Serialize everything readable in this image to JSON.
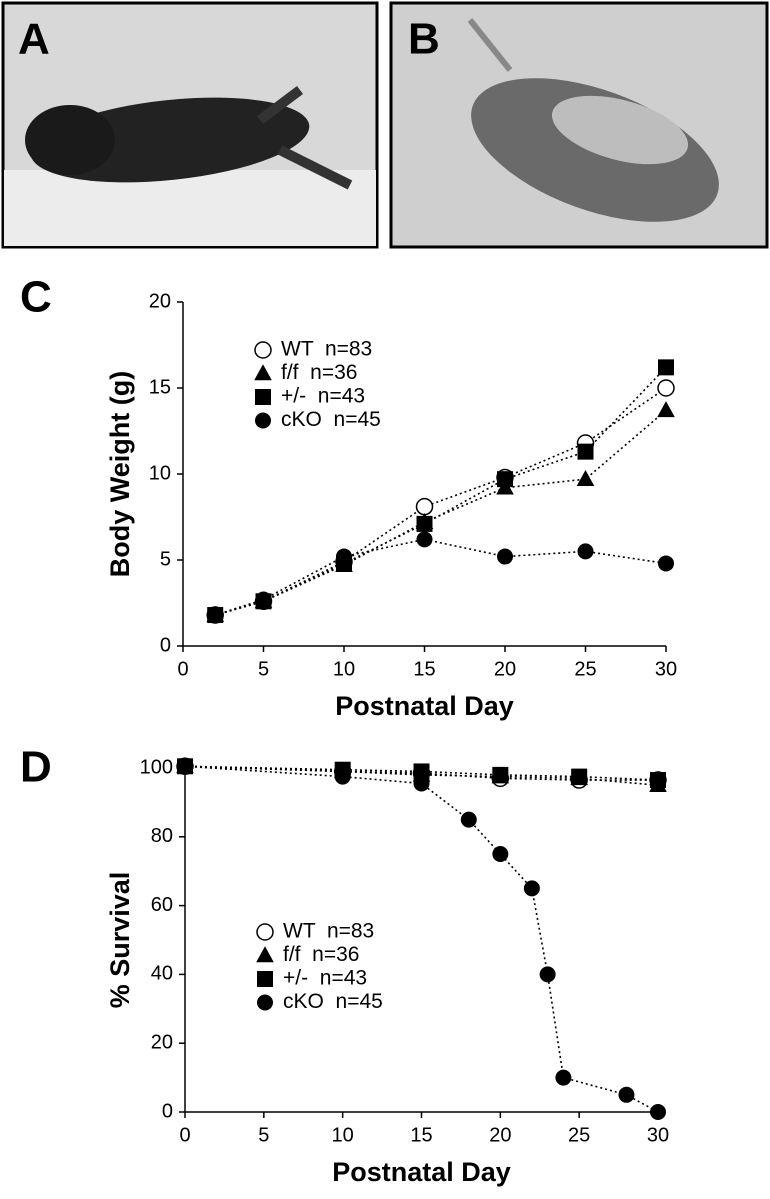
{
  "panel_labels": [
    "A",
    "B",
    "C",
    "D"
  ],
  "chart_data": [
    {
      "type": "line",
      "xlabel": "Postnatal Day",
      "ylabel": "Body Weight (g)",
      "x": [
        2,
        5,
        10,
        15,
        20,
        25,
        30
      ],
      "xlim": [
        0,
        30
      ],
      "xticks": [
        0,
        5,
        10,
        15,
        20,
        25,
        30
      ],
      "ylim": [
        0,
        20
      ],
      "yticks": [
        0,
        5,
        10,
        15,
        20
      ],
      "legend": "upper left",
      "series": [
        {
          "name": "WT  n=83",
          "marker": "open-circle",
          "color": "#000000",
          "values": [
            1.8,
            2.6,
            4.9,
            8.1,
            9.8,
            11.8,
            15.0
          ]
        },
        {
          "name": "f/f  n=36",
          "marker": "triangle",
          "color": "#000000",
          "values": [
            1.8,
            2.6,
            4.7,
            7.2,
            9.2,
            9.7,
            13.7
          ]
        },
        {
          "name": "+/-  n=43",
          "marker": "square",
          "color": "#000000",
          "values": [
            1.8,
            2.6,
            4.8,
            7.1,
            9.7,
            11.3,
            16.2
          ]
        },
        {
          "name": "cKO  n=45",
          "marker": "circle",
          "color": "#000000",
          "values": [
            1.8,
            2.7,
            5.2,
            6.2,
            5.2,
            5.5,
            4.8
          ]
        }
      ]
    },
    {
      "type": "line",
      "xlabel": "Postnatal Day",
      "ylabel": "% Survival",
      "xlim": [
        0,
        30
      ],
      "xticks": [
        0,
        5,
        10,
        15,
        20,
        25,
        30
      ],
      "ylim": [
        0,
        100
      ],
      "yticks": [
        0,
        20,
        40,
        60,
        80,
        100
      ],
      "legend": "lower left",
      "series": [
        {
          "name": "WT  n=83",
          "marker": "open-circle",
          "color": "#000000",
          "x": [
            0,
            10,
            15,
            20,
            25,
            30
          ],
          "values": [
            100.5,
            99,
            98.5,
            97,
            96.5,
            96.5
          ]
        },
        {
          "name": "f/f  n=36",
          "marker": "triangle",
          "color": "#000000",
          "x": [
            0,
            10,
            15,
            20,
            25,
            30
          ],
          "values": [
            100.5,
            99,
            98,
            97.5,
            97,
            95
          ]
        },
        {
          "name": "+/-  n=43",
          "marker": "square",
          "color": "#000000",
          "x": [
            0,
            10,
            15,
            20,
            25,
            30
          ],
          "values": [
            100.5,
            99.5,
            99,
            98,
            97.5,
            96.5
          ]
        },
        {
          "name": "cKO  n=45",
          "marker": "circle",
          "color": "#000000",
          "x": [
            0,
            10,
            15,
            18,
            20,
            22,
            23,
            24,
            28,
            30
          ],
          "values": [
            100.5,
            97.5,
            95.5,
            85,
            75,
            65,
            40,
            10,
            5,
            0
          ]
        }
      ]
    }
  ]
}
